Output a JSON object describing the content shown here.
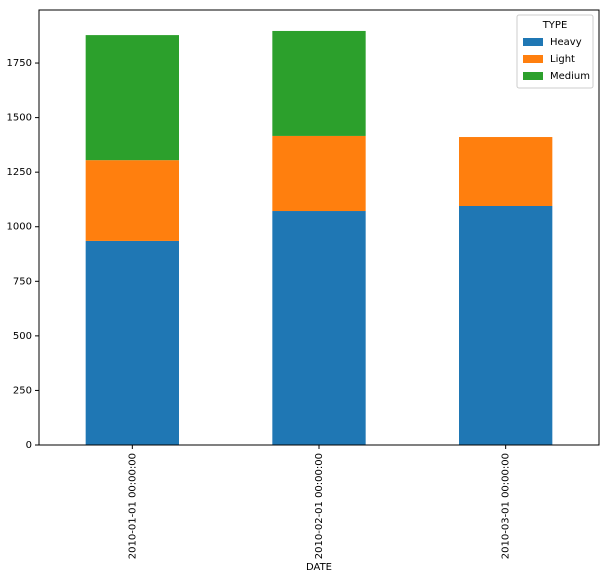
{
  "chart_data": {
    "type": "stacked-bar",
    "xlabel": "DATE",
    "categories": [
      "2010-01-01 00:00:00",
      "2010-02-01 00:00:00",
      "2010-03-01 00:00:00"
    ],
    "series": [
      {
        "name": "Heavy",
        "color": "#1f77b4",
        "values": [
          935,
          1072,
          1095
        ]
      },
      {
        "name": "Light",
        "color": "#ff7f0e",
        "values": [
          370,
          344,
          316
        ]
      },
      {
        "name": "Medium",
        "color": "#2ca02c",
        "values": [
          573,
          481,
          0
        ]
      }
    ],
    "legend_title": "TYPE",
    "legend_position": "upper-right",
    "ylim": [
      0,
      1993
    ],
    "yticks": [
      0,
      250,
      500,
      750,
      1000,
      1250,
      1500,
      1750
    ]
  }
}
